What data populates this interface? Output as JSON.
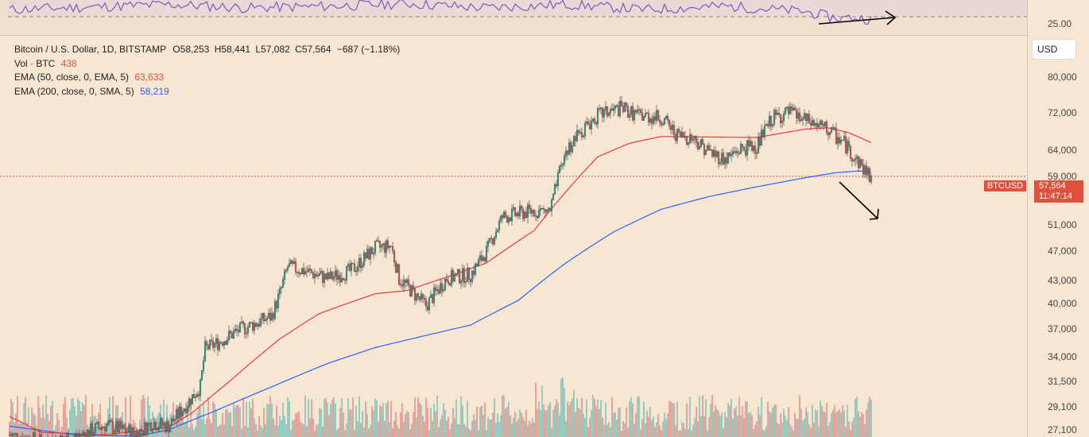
{
  "legend": {
    "title": "Bitcoin / U.S. Dollar, 1D, BITSTAMP",
    "o_label": "O",
    "o_value": "58,253",
    "h_label": "H",
    "h_value": "58,441",
    "l_label": "L",
    "l_value": "57,082",
    "c_label": "C",
    "c_value": "57,564",
    "change": "−687 (−1.18%)",
    "vol_label": "Vol · BTC",
    "vol_value": "438",
    "ema50_label": "EMA (50, close, 0, EMA, 5)",
    "ema50_value": "63,633",
    "ema200_label": "EMA (200, close, 0, SMA, 5)",
    "ema200_value": "58,219"
  },
  "price_axis": {
    "currency": "USD",
    "rsi_tick": "25.00",
    "ticks": [
      "80,000",
      "72,000",
      "64,000",
      "59,000",
      "51,000",
      "47,000",
      "43,000",
      "40,000",
      "37,000",
      "34,000",
      "31,500",
      "29,100",
      "27,100"
    ]
  },
  "price_tag": {
    "symbol": "BTCUSD",
    "price": "57,564",
    "countdown": "11:47:14"
  },
  "colors": {
    "up": "#26a69a",
    "down": "#ef5350",
    "ema50": "#f23645",
    "ema200": "#2962ff",
    "rsi": "#7e57c2",
    "last_price": "#e0513d",
    "bg": "#f7e6d2"
  },
  "chart_data": {
    "type": "candlestick",
    "title": "Bitcoin / U.S. Dollar, 1D, BITSTAMP",
    "y_scale": "log",
    "ylim": [
      26500,
      90000
    ],
    "series": [
      {
        "name": "BTCUSD",
        "close_anchors": [
          [
            0,
            26700
          ],
          [
            20,
            26200
          ],
          [
            40,
            26400
          ],
          [
            60,
            27500
          ],
          [
            80,
            26800
          ],
          [
            90,
            27700
          ],
          [
            100,
            27400
          ],
          [
            110,
            29000
          ],
          [
            120,
            30800
          ],
          [
            123,
            34500
          ],
          [
            130,
            35000
          ],
          [
            145,
            36500
          ],
          [
            155,
            37200
          ],
          [
            165,
            38000
          ],
          [
            170,
            40600
          ],
          [
            175,
            44000
          ],
          [
            185,
            43500
          ],
          [
            200,
            42500
          ],
          [
            215,
            43500
          ],
          [
            230,
            46500
          ],
          [
            240,
            46800
          ],
          [
            245,
            42500
          ],
          [
            255,
            40500
          ],
          [
            262,
            39200
          ],
          [
            275,
            42500
          ],
          [
            290,
            43000
          ],
          [
            300,
            46000
          ],
          [
            310,
            51000
          ],
          [
            320,
            51500
          ],
          [
            330,
            52000
          ],
          [
            340,
            52000
          ],
          [
            350,
            62000
          ],
          [
            360,
            66000
          ],
          [
            370,
            69000
          ],
          [
            385,
            70500
          ],
          [
            395,
            69000
          ],
          [
            410,
            68500
          ],
          [
            420,
            65000
          ],
          [
            430,
            64500
          ],
          [
            440,
            62000
          ],
          [
            450,
            60500
          ],
          [
            460,
            62500
          ],
          [
            470,
            63000
          ],
          [
            480,
            68500
          ],
          [
            490,
            69500
          ],
          [
            500,
            68000
          ],
          [
            515,
            66000
          ],
          [
            525,
            63500
          ],
          [
            530,
            61500
          ],
          [
            538,
            58600
          ],
          [
            542,
            57564
          ]
        ]
      },
      {
        "name": "EMA (50, close, 0, EMA, 5)",
        "anchors": [
          [
            0,
            28200
          ],
          [
            20,
            26900
          ],
          [
            60,
            26700
          ],
          [
            100,
            27300
          ],
          [
            115,
            28500
          ],
          [
            140,
            31500
          ],
          [
            170,
            35500
          ],
          [
            195,
            38300
          ],
          [
            230,
            40600
          ],
          [
            250,
            41000
          ],
          [
            280,
            43000
          ],
          [
            300,
            44500
          ],
          [
            330,
            49000
          ],
          [
            350,
            55000
          ],
          [
            370,
            61000
          ],
          [
            390,
            63500
          ],
          [
            410,
            64800
          ],
          [
            440,
            64700
          ],
          [
            470,
            64600
          ],
          [
            500,
            66200
          ],
          [
            515,
            66500
          ],
          [
            528,
            65500
          ],
          [
            542,
            63633
          ]
        ]
      },
      {
        "name": "EMA (200, close, 0, SMA, 5)",
        "anchors": [
          [
            0,
            27400
          ],
          [
            40,
            26700
          ],
          [
            80,
            26600
          ],
          [
            100,
            27100
          ],
          [
            130,
            28700
          ],
          [
            165,
            30800
          ],
          [
            200,
            33000
          ],
          [
            230,
            34600
          ],
          [
            260,
            35800
          ],
          [
            290,
            37000
          ],
          [
            320,
            39800
          ],
          [
            350,
            44500
          ],
          [
            380,
            48800
          ],
          [
            410,
            52200
          ],
          [
            440,
            54200
          ],
          [
            470,
            55800
          ],
          [
            500,
            57300
          ],
          [
            520,
            58200
          ],
          [
            535,
            58500
          ],
          [
            542,
            58219
          ]
        ]
      },
      {
        "name": "RSI",
        "anchors": [
          [
            0,
            38
          ],
          [
            50,
            41
          ],
          [
            100,
            44
          ],
          [
            150,
            40
          ],
          [
            200,
            42
          ],
          [
            250,
            45
          ],
          [
            300,
            40
          ],
          [
            350,
            44
          ],
          [
            400,
            38
          ],
          [
            450,
            42
          ],
          [
            500,
            36
          ],
          [
            515,
            30
          ],
          [
            522,
            28
          ],
          [
            530,
            29
          ],
          [
            542,
            27
          ]
        ]
      }
    ]
  }
}
